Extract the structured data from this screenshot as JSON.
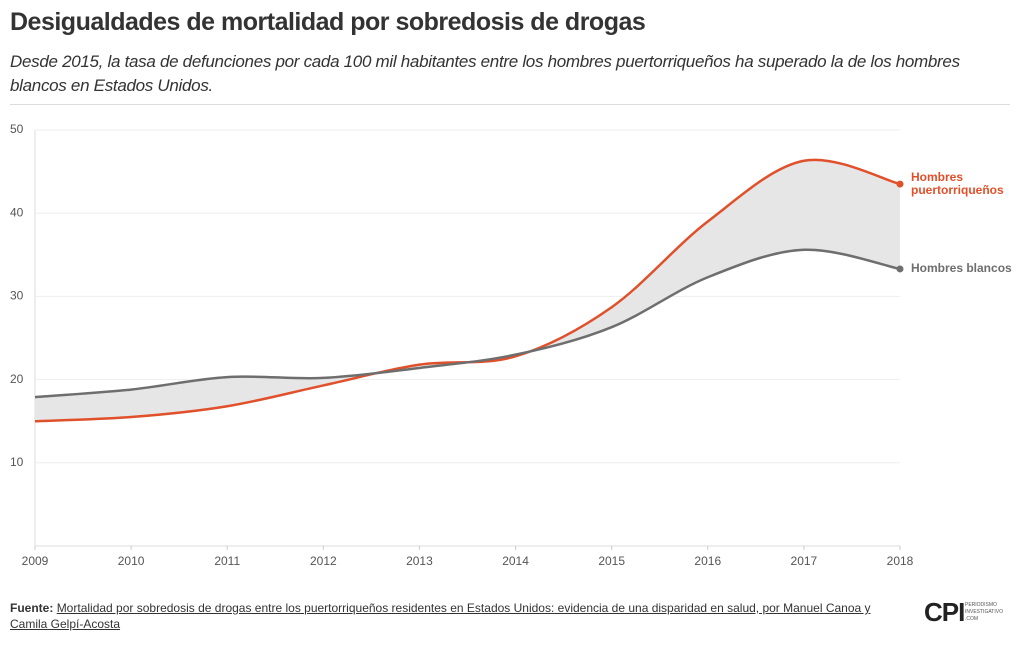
{
  "chart_data": {
    "type": "line",
    "title": "Desigualdades de mortalidad por sobredosis de drogas",
    "subtitle": "Desde 2015, la tasa de defunciones por cada 100 mil habitantes entre los hombres puertorriqueños ha superado la de los hombres blancos en Estados Unidos.",
    "x": [
      2009,
      2010,
      2011,
      2012,
      2013,
      2014,
      2015,
      2016,
      2017,
      2018
    ],
    "xlim": [
      2009,
      2018
    ],
    "xticks": [
      2009,
      2010,
      2011,
      2012,
      2013,
      2014,
      2015,
      2016,
      2017,
      2018
    ],
    "ylim": [
      0,
      50
    ],
    "yticks": [
      10,
      20,
      30,
      40,
      50
    ],
    "grid": true,
    "fill_between": "#e6e6e6",
    "series": [
      {
        "name": "Hombres puertorriqueños",
        "color": "#e0502a",
        "values": [
          15.0,
          15.5,
          16.8,
          19.3,
          21.8,
          22.8,
          28.7,
          39.0,
          46.3,
          43.5
        ]
      },
      {
        "name": "Hombres blancos",
        "color": "#6e6e6e",
        "values": [
          17.9,
          18.8,
          20.3,
          20.2,
          21.4,
          23.0,
          26.3,
          32.3,
          35.6,
          33.3
        ]
      }
    ],
    "source_label": "Fuente:",
    "source": "Mortalidad por sobredosis de drogas entre los puertorriqueños residentes en Estados Unidos: evidencia de una disparidad en salud, por Manuel Canoa y Camila Gelpí-Acosta",
    "logo": "CPI",
    "logo_sub": "PERIODISMO INVESTIGATIVO .COM"
  }
}
